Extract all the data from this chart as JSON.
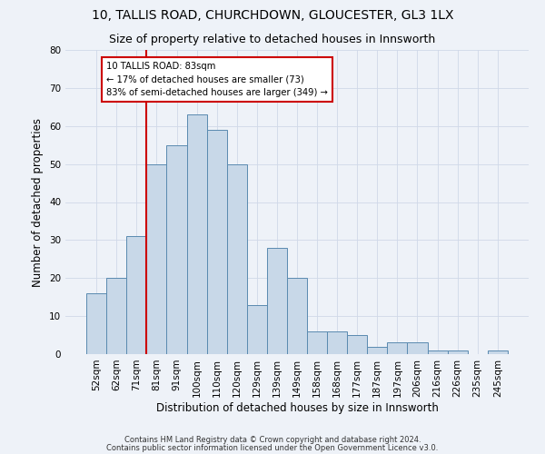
{
  "title1": "10, TALLIS ROAD, CHURCHDOWN, GLOUCESTER, GL3 1LX",
  "title2": "Size of property relative to detached houses in Innsworth",
  "xlabel": "Distribution of detached houses by size in Innsworth",
  "ylabel": "Number of detached properties",
  "bar_labels": [
    "52sqm",
    "62sqm",
    "71sqm",
    "81sqm",
    "91sqm",
    "100sqm",
    "110sqm",
    "120sqm",
    "129sqm",
    "139sqm",
    "149sqm",
    "158sqm",
    "168sqm",
    "177sqm",
    "187sqm",
    "197sqm",
    "206sqm",
    "216sqm",
    "226sqm",
    "235sqm",
    "245sqm"
  ],
  "bar_values": [
    16,
    20,
    31,
    50,
    55,
    63,
    59,
    50,
    13,
    28,
    20,
    6,
    6,
    5,
    2,
    3,
    3,
    1,
    1,
    0,
    1
  ],
  "bar_color": "#c8d8e8",
  "bar_edgecolor": "#5a8ab0",
  "vline_x_index": 3,
  "vline_color": "#cc0000",
  "annotation_text": "10 TALLIS ROAD: 83sqm\n← 17% of detached houses are smaller (73)\n83% of semi-detached houses are larger (349) →",
  "annotation_box_color": "white",
  "annotation_box_edgecolor": "#cc0000",
  "ylim": [
    0,
    80
  ],
  "yticks": [
    0,
    10,
    20,
    30,
    40,
    50,
    60,
    70,
    80
  ],
  "grid_color": "#d0d8e8",
  "footnote1": "Contains HM Land Registry data © Crown copyright and database right 2024.",
  "footnote2": "Contains public sector information licensed under the Open Government Licence v3.0.",
  "bg_color": "#eef2f8",
  "title1_fontsize": 10,
  "title2_fontsize": 9,
  "xlabel_fontsize": 8.5,
  "ylabel_fontsize": 8.5,
  "tick_fontsize": 7.5,
  "footnote_fontsize": 6.0
}
